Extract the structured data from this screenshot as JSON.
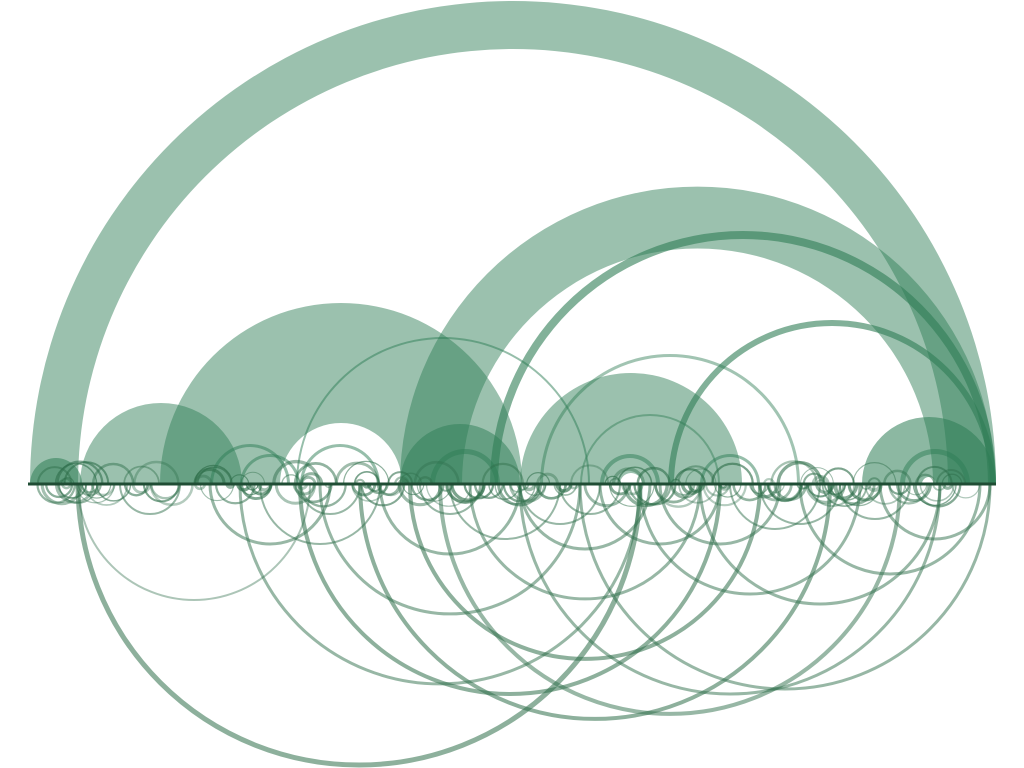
{
  "diagram": {
    "type": "arc-diagram",
    "colors": {
      "background": "#ffffff",
      "upper_fill": "#2e7d55",
      "lower_stroke": "#2f6f4b",
      "baseline": "#1f4d34"
    }
  }
}
